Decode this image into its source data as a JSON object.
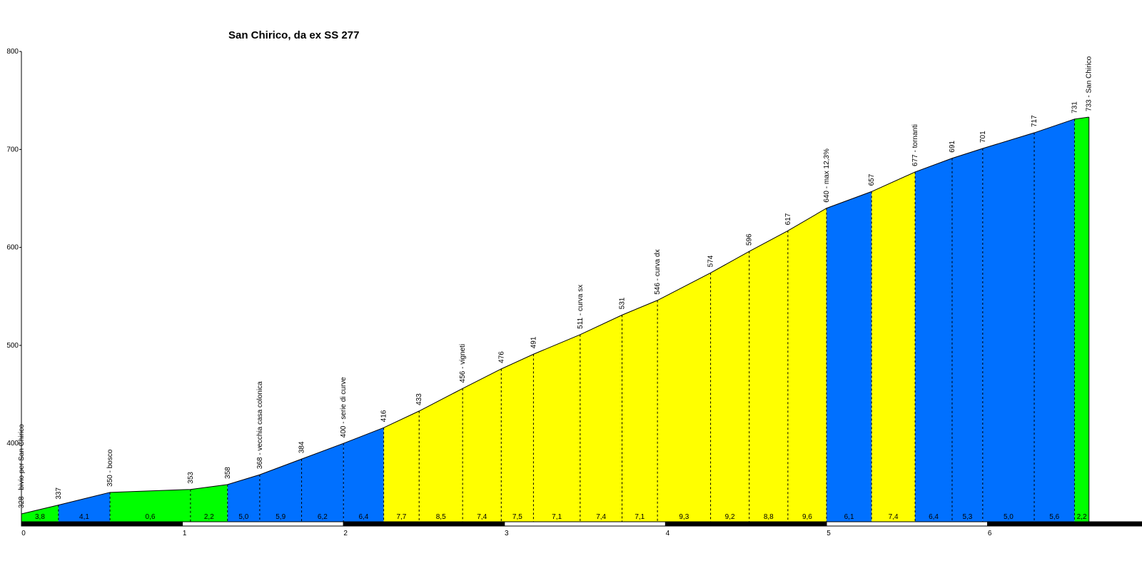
{
  "chart_data": {
    "type": "area",
    "title": "San Chirico, da ex  SS  277",
    "xlabel": "",
    "ylabel": "",
    "xlim": [
      0,
      7
    ],
    "ylim": [
      320,
      800
    ],
    "x_ticks": [
      "0",
      "1",
      "2",
      "3",
      "4",
      "5",
      "6"
    ],
    "y_ticks": [
      "400",
      "500",
      "600",
      "700",
      "800"
    ],
    "grid": false,
    "gradient_colors": {
      "low": "#00ff00",
      "medium": "#0070ff",
      "high": "#ffff00"
    },
    "points": [
      {
        "km": 0.0,
        "alt": 328,
        "label": "328 - bivio per San Chirico"
      },
      {
        "km": 0.23,
        "alt": 337,
        "label": "337"
      },
      {
        "km": 0.55,
        "alt": 350,
        "label": "350 - bosco"
      },
      {
        "km": 1.05,
        "alt": 353,
        "label": "353"
      },
      {
        "km": 1.28,
        "alt": 358,
        "label": "358"
      },
      {
        "km": 1.48,
        "alt": 368,
        "label": "368 - vecchia casa colonica"
      },
      {
        "km": 1.74,
        "alt": 384,
        "label": "384"
      },
      {
        "km": 2.0,
        "alt": 400,
        "label": "400 - serie di curve"
      },
      {
        "km": 2.25,
        "alt": 416,
        "label": "416"
      },
      {
        "km": 2.47,
        "alt": 433,
        "label": "433"
      },
      {
        "km": 2.74,
        "alt": 456,
        "label": "456 - vigneti"
      },
      {
        "km": 2.98,
        "alt": 476,
        "label": "476"
      },
      {
        "km": 3.18,
        "alt": 491,
        "label": "491"
      },
      {
        "km": 3.47,
        "alt": 511,
        "label": "511 - curva sx"
      },
      {
        "km": 3.73,
        "alt": 531,
        "label": "531"
      },
      {
        "km": 3.95,
        "alt": 546,
        "label": "546 - curva dx"
      },
      {
        "km": 4.28,
        "alt": 574,
        "label": "574"
      },
      {
        "km": 4.52,
        "alt": 596,
        "label": "596"
      },
      {
        "km": 4.76,
        "alt": 617,
        "label": "617"
      },
      {
        "km": 5.0,
        "alt": 640,
        "label": "640 - max  12,3%"
      },
      {
        "km": 5.28,
        "alt": 657,
        "label": "657"
      },
      {
        "km": 5.55,
        "alt": 677,
        "label": "677 - tornanti"
      },
      {
        "km": 5.78,
        "alt": 691,
        "label": "691"
      },
      {
        "km": 5.97,
        "alt": 701,
        "label": "701"
      },
      {
        "km": 6.29,
        "alt": 717,
        "label": "717"
      },
      {
        "km": 6.54,
        "alt": 731,
        "label": "731"
      },
      {
        "km": 6.63,
        "alt": 733,
        "label": "733 - San Chirico"
      }
    ],
    "segments": [
      {
        "gradient": "3,8",
        "level": "low"
      },
      {
        "gradient": "4,1",
        "level": "medium"
      },
      {
        "gradient": "0,6",
        "level": "low"
      },
      {
        "gradient": "2,2",
        "level": "low"
      },
      {
        "gradient": "5,0",
        "level": "medium"
      },
      {
        "gradient": "5,9",
        "level": "medium"
      },
      {
        "gradient": "6,2",
        "level": "medium"
      },
      {
        "gradient": "6,4",
        "level": "medium"
      },
      {
        "gradient": "7,7",
        "level": "high"
      },
      {
        "gradient": "8,5",
        "level": "high"
      },
      {
        "gradient": "7,4",
        "level": "high"
      },
      {
        "gradient": "7,5",
        "level": "high"
      },
      {
        "gradient": "7,1",
        "level": "high"
      },
      {
        "gradient": "7,4",
        "level": "high"
      },
      {
        "gradient": "7,1",
        "level": "high"
      },
      {
        "gradient": "9,3",
        "level": "high"
      },
      {
        "gradient": "9,2",
        "level": "high"
      },
      {
        "gradient": "8,8",
        "level": "high"
      },
      {
        "gradient": "9,6",
        "level": "high"
      },
      {
        "gradient": "6,1",
        "level": "medium"
      },
      {
        "gradient": "7,4",
        "level": "high"
      },
      {
        "gradient": "6,4",
        "level": "medium"
      },
      {
        "gradient": "5,3",
        "level": "medium"
      },
      {
        "gradient": "5,0",
        "level": "medium"
      },
      {
        "gradient": "5,6",
        "level": "medium"
      },
      {
        "gradient": "2,2",
        "level": "low"
      }
    ]
  }
}
